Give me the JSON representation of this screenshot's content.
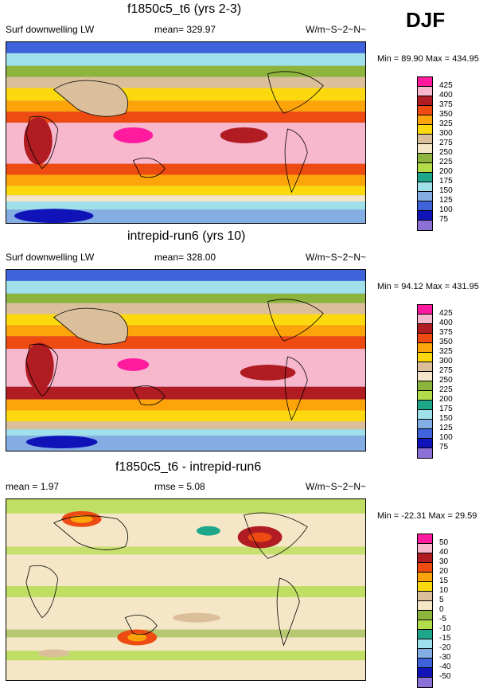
{
  "season": "DJF",
  "panels": [
    {
      "title": "f1850c5_t6 (yrs 2-3)",
      "left_label": "Surf downwelling LW",
      "center_label": "mean= 329.97",
      "units": "W/m~S~2~N~",
      "minmax": "Min = 89.90 Max = 434.95",
      "levels": [
        "425",
        "400",
        "375",
        "350",
        "325",
        "300",
        "275",
        "250",
        "225",
        "200",
        "175",
        "150",
        "125",
        "100",
        "75"
      ],
      "colors": [
        "#ff1a9e",
        "#f7b7cd",
        "#b01c22",
        "#ee4b12",
        "#fda40b",
        "#fcd80f",
        "#dbbf9b",
        "#f4e6c6",
        "#8db43c",
        "#b3dc4a",
        "#1ea68a",
        "#9fe0ea",
        "#84aee3",
        "#3e63db",
        "#1014b8",
        "#8b70d6"
      ]
    },
    {
      "title": "intrepid-run6 (yrs 10)",
      "left_label": "Surf downwelling LW",
      "center_label": "mean= 328.00",
      "units": "W/m~S~2~N~",
      "minmax": "Min = 94.12 Max = 431.95",
      "levels": [
        "425",
        "400",
        "375",
        "350",
        "325",
        "300",
        "275",
        "250",
        "225",
        "200",
        "175",
        "150",
        "125",
        "100",
        "75"
      ],
      "colors": [
        "#ff1a9e",
        "#f7b7cd",
        "#b01c22",
        "#ee4b12",
        "#fda40b",
        "#fcd80f",
        "#dbbf9b",
        "#f4e6c6",
        "#8db43c",
        "#b3dc4a",
        "#1ea68a",
        "#9fe0ea",
        "#84aee3",
        "#3e63db",
        "#1014b8",
        "#8b70d6"
      ]
    },
    {
      "title": "f1850c5_t6 - intrepid-run6",
      "left_label": "mean = 1.97",
      "center_label": "rmse = 5.08",
      "units": "W/m~S~2~N~",
      "minmax": "Min = -22.31 Max = 29.59",
      "levels": [
        "50",
        "40",
        "30",
        "20",
        "15",
        "10",
        "5",
        "0",
        "-5",
        "-10",
        "-15",
        "-20",
        "-30",
        "-40",
        "-50"
      ],
      "colors": [
        "#ff1a9e",
        "#f7b7cd",
        "#b01c22",
        "#ee4b12",
        "#fda40b",
        "#fcd80f",
        "#dbbf9b",
        "#f4e6c6",
        "#8db43c",
        "#b3dc4a",
        "#1ea68a",
        "#9fe0ea",
        "#84aee3",
        "#3e63db",
        "#1014b8",
        "#8b70d6"
      ]
    }
  ]
}
